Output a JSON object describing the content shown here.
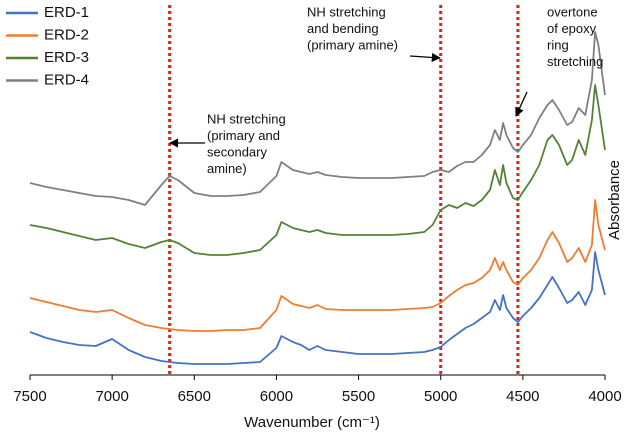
{
  "chart_data": {
    "type": "line",
    "xlabel": "Wavenumber (cm⁻¹)",
    "ylabel": "Absorbance",
    "x": [
      7500,
      7400,
      7300,
      7200,
      7100,
      7000,
      6900,
      6800,
      6700,
      6650,
      6600,
      6500,
      6400,
      6300,
      6200,
      6100,
      6000,
      5970,
      5900,
      5850,
      5800,
      5750,
      5700,
      5600,
      5500,
      5400,
      5300,
      5200,
      5100,
      5050,
      5000,
      4950,
      4900,
      4850,
      4800,
      4750,
      4700,
      4670,
      4640,
      4620,
      4600,
      4560,
      4530,
      4500,
      4450,
      4400,
      4350,
      4320,
      4280,
      4230,
      4200,
      4160,
      4120,
      4080,
      4060,
      4040,
      4000
    ],
    "xlim": [
      7500,
      4000
    ],
    "xticks": [
      7500,
      7000,
      6500,
      6000,
      5500,
      5000,
      4500,
      4000
    ],
    "ylim": [
      0,
      370
    ],
    "legend": "upper left",
    "series": [
      {
        "name": "ERD-1",
        "color": "#4472c4",
        "values": [
          43,
          37,
          33,
          30,
          29,
          36,
          25,
          18,
          14,
          13,
          12,
          11,
          11,
          11,
          12,
          13,
          27,
          39,
          33,
          30,
          25,
          29,
          25,
          23,
          21,
          21,
          21,
          22,
          23,
          25,
          28,
          35,
          41,
          47,
          51,
          57,
          63,
          75,
          65,
          80,
          67,
          57,
          53,
          59,
          67,
          77,
          90,
          98,
          87,
          72,
          75,
          83,
          70,
          85,
          123,
          105,
          80
        ]
      },
      {
        "name": "ERD-2",
        "color": "#ed7d31",
        "values": [
          77,
          73,
          69,
          65,
          63,
          65,
          57,
          50,
          47,
          46,
          45,
          44,
          44,
          45,
          45,
          47,
          65,
          79,
          71,
          69,
          67,
          70,
          66,
          65,
          65,
          65,
          65,
          66,
          67,
          68,
          72,
          79,
          85,
          90,
          92,
          97,
          105,
          117,
          105,
          113,
          105,
          93,
          90,
          97,
          105,
          117,
          135,
          143,
          132,
          113,
          117,
          127,
          113,
          130,
          175,
          150,
          125
        ]
      },
      {
        "name": "ERD-3",
        "color": "#548235",
        "values": [
          150,
          147,
          143,
          139,
          135,
          137,
          131,
          127,
          133,
          135,
          132,
          122,
          120,
          120,
          122,
          125,
          140,
          153,
          147,
          145,
          143,
          145,
          142,
          140,
          140,
          140,
          140,
          141,
          143,
          150,
          165,
          170,
          167,
          172,
          169,
          175,
          185,
          205,
          190,
          210,
          192,
          177,
          175,
          183,
          195,
          210,
          235,
          240,
          230,
          210,
          215,
          235,
          220,
          255,
          290,
          270,
          225
        ]
      },
      {
        "name": "ERD-4",
        "color": "#808080",
        "values": [
          192,
          188,
          185,
          182,
          179,
          178,
          175,
          170,
          190,
          199,
          195,
          182,
          179,
          179,
          180,
          183,
          199,
          213,
          205,
          203,
          201,
          203,
          200,
          198,
          197,
          197,
          197,
          198,
          199,
          203,
          205,
          203,
          209,
          213,
          213,
          220,
          230,
          245,
          235,
          252,
          240,
          227,
          223,
          230,
          240,
          257,
          270,
          275,
          265,
          250,
          253,
          267,
          260,
          295,
          343,
          330,
          280
        ]
      }
    ],
    "vlines": [
      6650,
      5000,
      4530
    ],
    "vline_color": "#e02020",
    "annotations": [
      {
        "lines": [
          "NH stretching",
          "(primary and",
          "secondary",
          "amine)"
        ]
      },
      {
        "lines": [
          "NH stretching",
          "and bending",
          "(primary amine)"
        ]
      },
      {
        "lines": [
          "overtone",
          "of epoxy",
          "ring",
          "stretching"
        ]
      }
    ]
  }
}
